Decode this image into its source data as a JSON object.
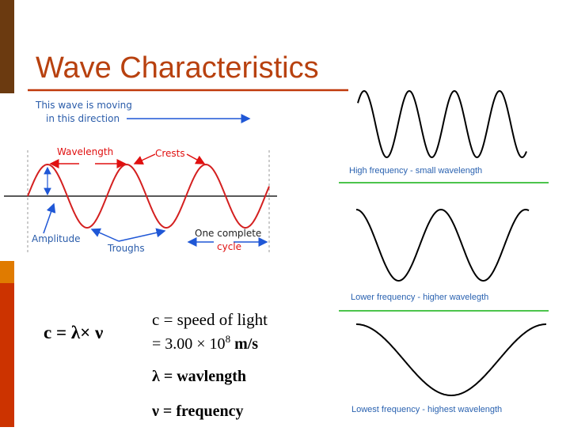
{
  "title": "Wave Characteristics",
  "diagram": {
    "moving_line1": "This wave is moving",
    "moving_line2": "in this direction",
    "wavelength": "Wavelength",
    "crests": "Crests",
    "amplitude": "Amplitude",
    "troughs": "Troughs",
    "cycle_line1": "One complete",
    "cycle_line2": "cycle"
  },
  "examples": [
    "High frequency - small wavelength",
    "Lower frequency - higher wavelegth",
    "Lowest frequency - highest wavelength"
  ],
  "equation": {
    "formula": "c = λ× ν",
    "c_def": "c = speed of light",
    "c_value": "= 3.00 × 10",
    "c_exponent": "8",
    "c_unit": " m/s",
    "lambda_def": "λ = wavlength",
    "nu_def": "ν = frequency"
  }
}
